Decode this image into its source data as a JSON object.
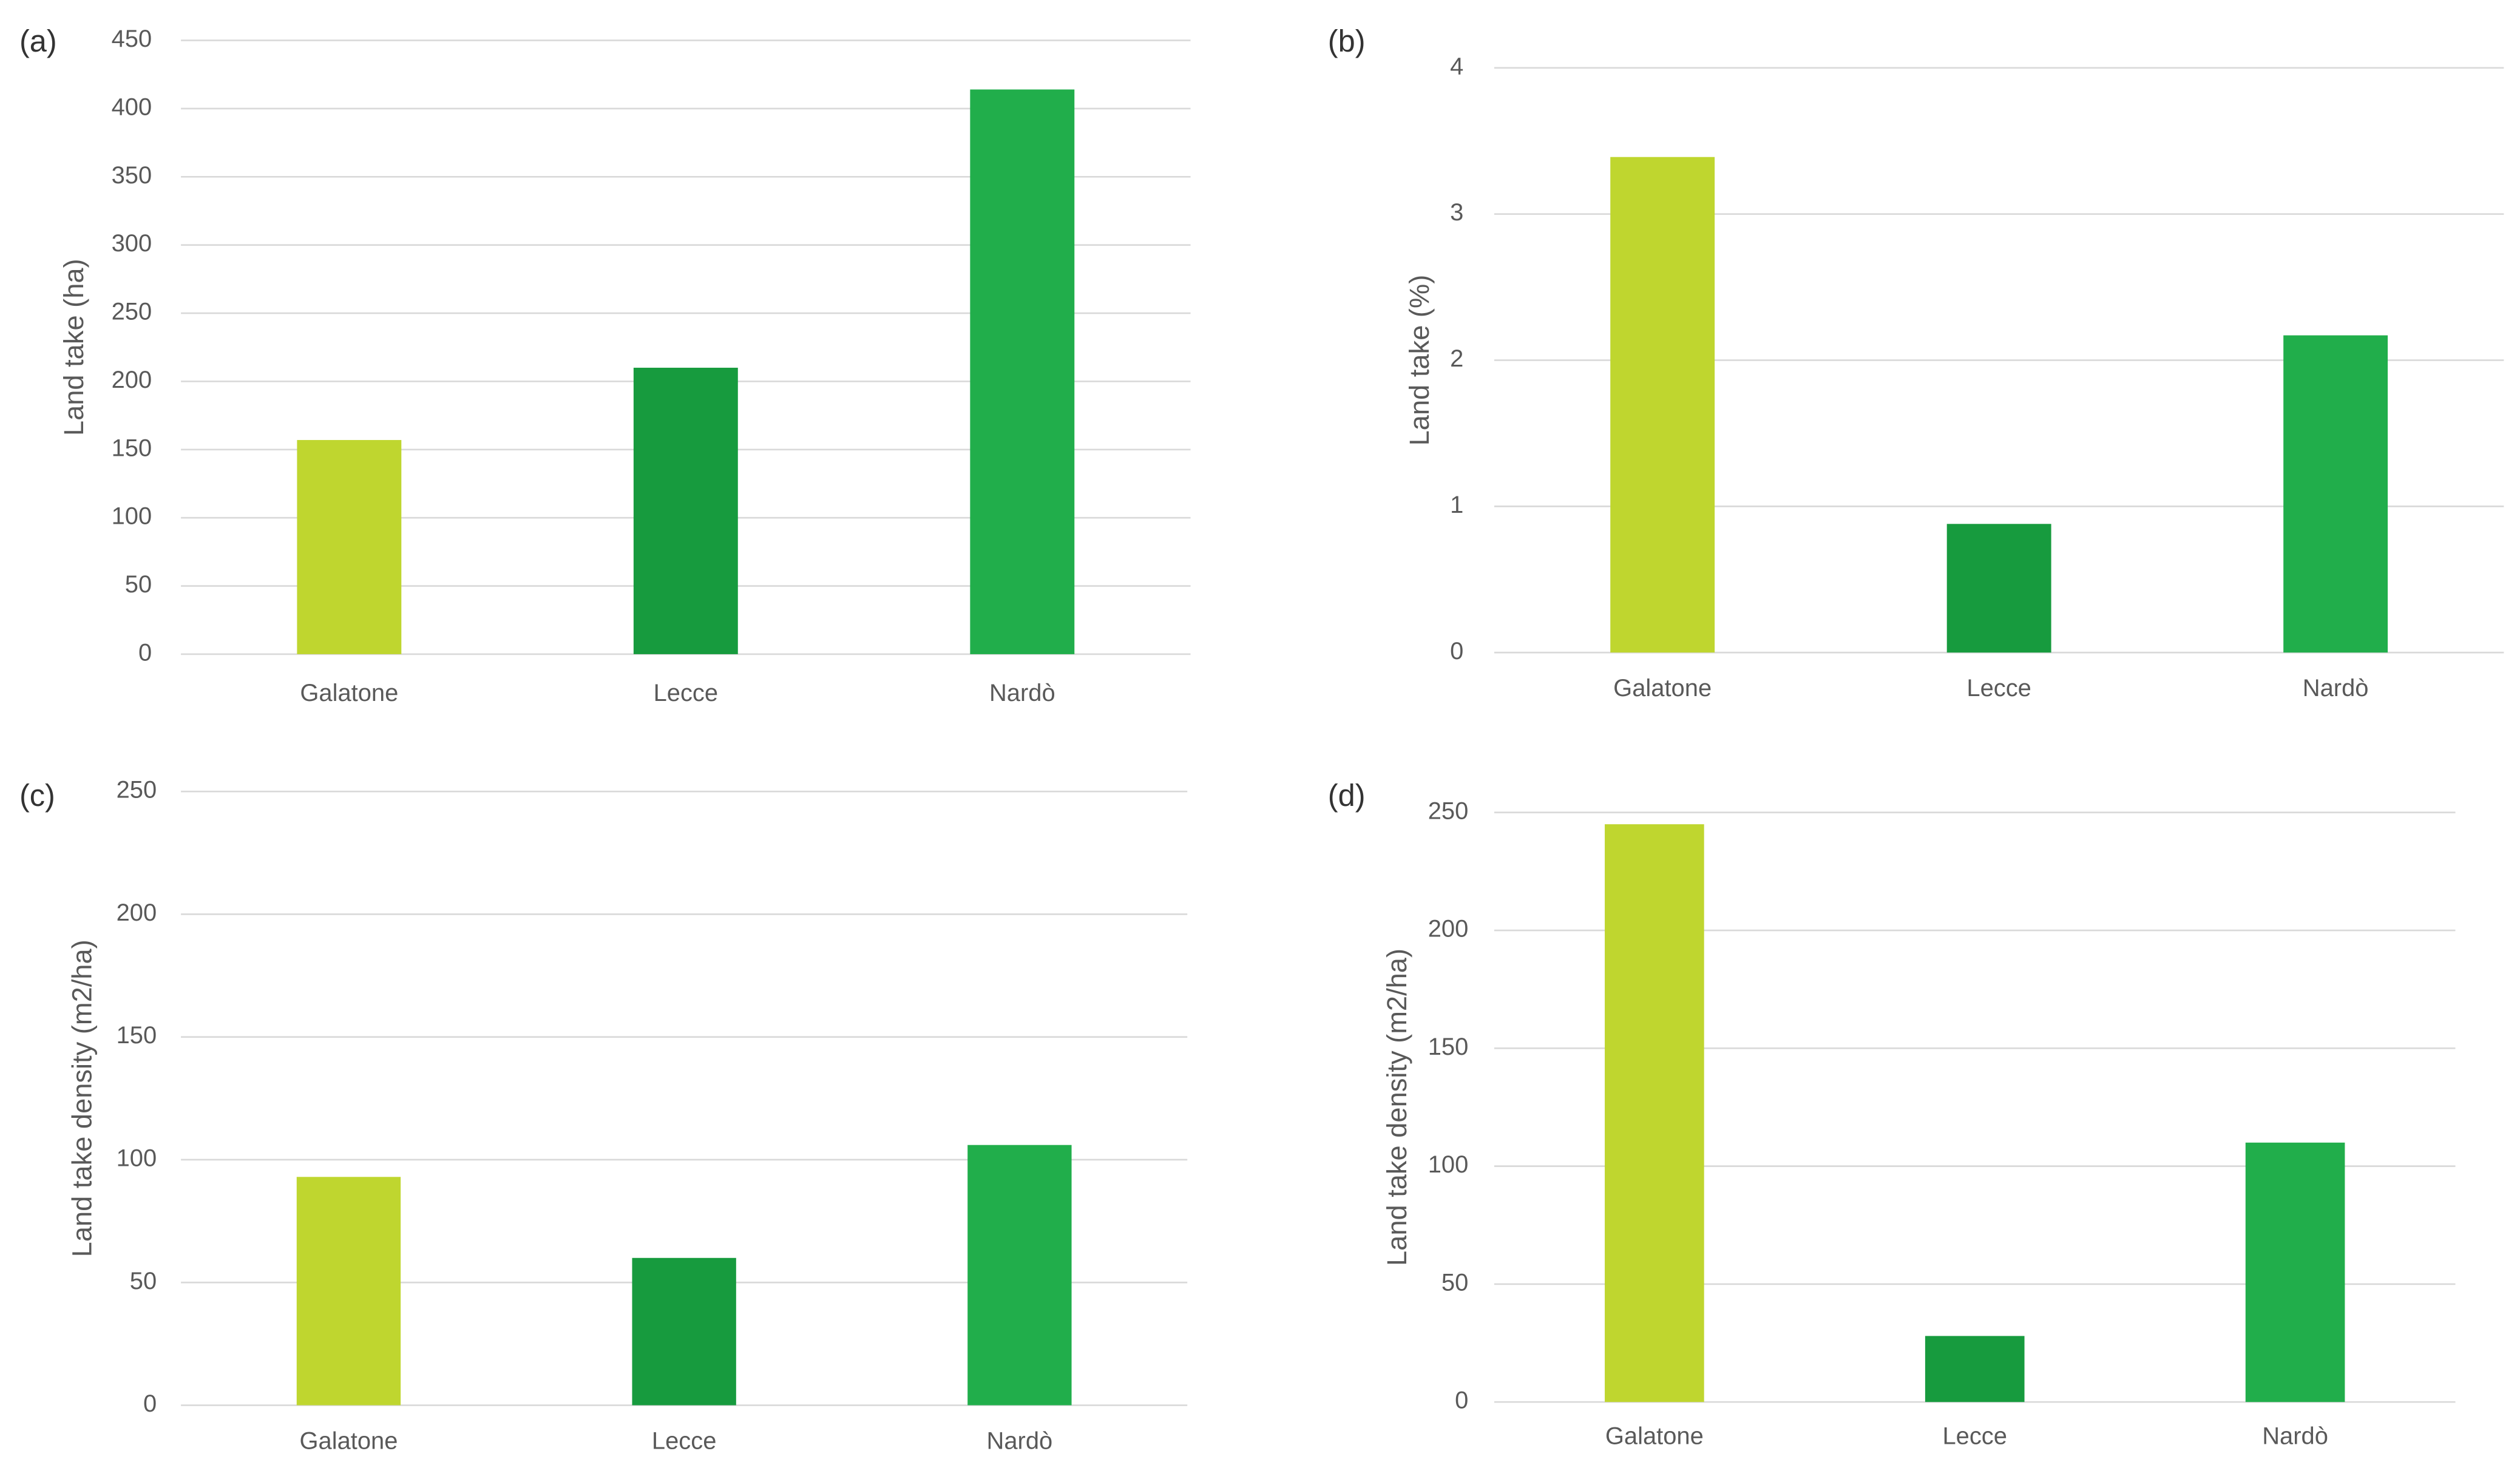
{
  "chart_data": [
    {
      "type": "bar",
      "label": "(a)",
      "y_label": "Land take (ha)",
      "categories": [
        "Galatone",
        "Lecce",
        "Nardò"
      ],
      "values": [
        157,
        210,
        414
      ],
      "colors": [
        "#bfd62f",
        "#179b3e",
        "#21ae4b"
      ],
      "ylim": [
        0,
        450
      ],
      "yticks": [
        0,
        50,
        100,
        150,
        200,
        250,
        300,
        350,
        400,
        450
      ],
      "grid": true
    },
    {
      "type": "bar",
      "label": "(b)",
      "y_label": "Land take (%)",
      "categories": [
        "Galatone",
        "Lecce",
        "Nardò"
      ],
      "values": [
        3.39,
        0.88,
        2.17
      ],
      "colors": [
        "#bfd62f",
        "#179b3e",
        "#21ae4b"
      ],
      "ylim": [
        0,
        4
      ],
      "yticks": [
        0,
        1,
        2,
        3,
        4
      ],
      "grid": true
    },
    {
      "type": "bar",
      "label": "(c)",
      "y_label": "Land take density (m2/ha)",
      "categories": [
        "Galatone",
        "Lecce",
        "Nardò"
      ],
      "values": [
        93,
        60,
        106
      ],
      "colors": [
        "#bfd62f",
        "#179b3e",
        "#21ae4b"
      ],
      "ylim": [
        0,
        250
      ],
      "yticks": [
        0,
        50,
        100,
        150,
        200,
        250
      ],
      "grid": true
    },
    {
      "type": "bar",
      "label": "(d)",
      "y_label": "Land take density (m2/ha)",
      "categories": [
        "Galatone",
        "Lecce",
        "Nardò"
      ],
      "values": [
        245,
        28,
        110
      ],
      "colors": [
        "#bfd62f",
        "#179b3e",
        "#21ae4b"
      ],
      "ylim": [
        0,
        250
      ],
      "yticks": [
        0,
        50,
        100,
        150,
        200,
        250
      ],
      "grid": true
    }
  ]
}
